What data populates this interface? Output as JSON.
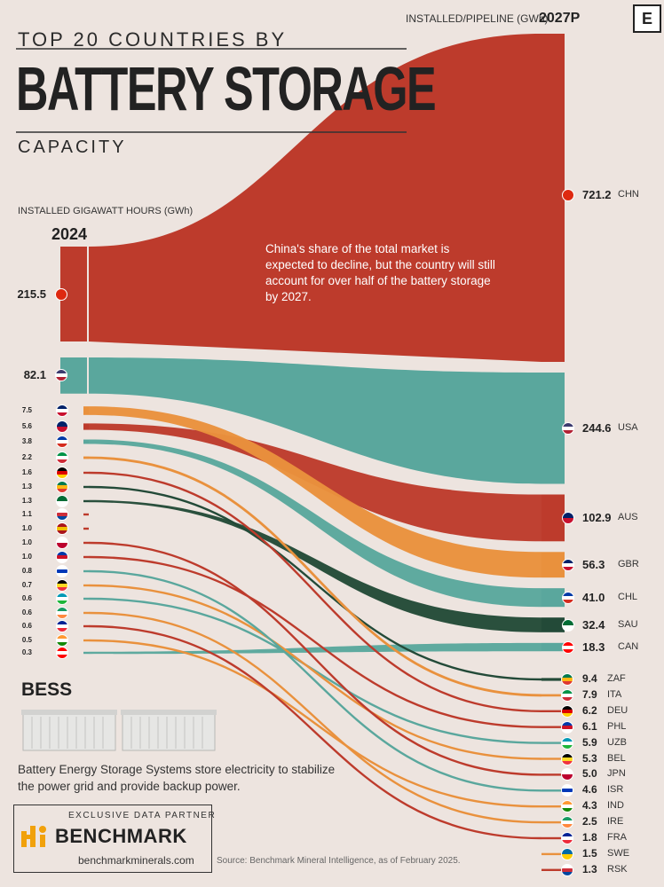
{
  "header": {
    "title_top": "TOP 20 COUNTRIES BY",
    "title_main": "BATTERY STORAGE",
    "title_bottom": "CAPACITY",
    "logo": "E",
    "right_axis_label": "INSTALLED/PIPELINE (GWh)",
    "right_year": "2027P",
    "left_axis_label": "INSTALLED GIGAWATT HOURS (GWh)",
    "left_year": "2024"
  },
  "annotation": "China's share of the total market is expected to decline, but the country will still account for over half of the battery storage by 2027.",
  "bess": {
    "title": "BESS",
    "description": "Battery Energy Storage Systems store electricity to stabilize the power grid and provide backup power."
  },
  "partner": {
    "label": "EXCLUSIVE DATA PARTNER",
    "name": "BENCHMARK",
    "url": "benchmarkminerals.com"
  },
  "source": "Source: Benchmark Mineral Intelligence, as of February 2025.",
  "colors": {
    "red": "#bd3b2c",
    "teal": "#5aa79d",
    "orange": "#e9913d",
    "darkgreen": "#234a38",
    "background": "#ede4df"
  },
  "chart_data": {
    "type": "sankey",
    "series": [
      {
        "name": "2024"
      },
      {
        "name": "2027P"
      }
    ],
    "left_order": [
      "CHN",
      "USA",
      "GBR",
      "AUS",
      "CHL",
      "ITA",
      "DEU",
      "ZAF",
      "SAU",
      "KOR",
      "ESP",
      "JPN",
      "PHL",
      "ISR",
      "BEL",
      "UZB",
      "IRE",
      "FRA",
      "IND",
      "CAN"
    ],
    "left_labels": [
      "215.5",
      "82.1",
      "7.5",
      "5.6",
      "3.8",
      "2.2",
      "1.6",
      "1.3",
      "1.3",
      "1.1",
      "1.0",
      "1.0",
      "1.0",
      "0.8",
      "0.7",
      "0.6",
      "0.6",
      "0.6",
      "0.5",
      "0.3"
    ],
    "left_values": [
      215.5,
      82.1,
      7.5,
      5.6,
      3.8,
      2.2,
      1.6,
      1.3,
      1.3,
      1.1,
      1.0,
      1.0,
      1.0,
      0.8,
      0.7,
      0.6,
      0.6,
      0.6,
      0.5,
      0.3
    ],
    "right_order": [
      "CHN",
      "USA",
      "AUS",
      "GBR",
      "CHL",
      "SAU",
      "CAN",
      "ZAF",
      "ITA",
      "DEU",
      "PHL",
      "UZB",
      "BEL",
      "JPN",
      "ISR",
      "IND",
      "IRE",
      "FRA",
      "SWE",
      "RSK"
    ],
    "right_labels": [
      "721.2",
      "244.6",
      "102.9",
      "56.3",
      "41.0",
      "32.4",
      "18.3",
      "9.4",
      "7.9",
      "6.2",
      "6.1",
      "5.9",
      "5.3",
      "5.0",
      "4.6",
      "4.3",
      "2.5",
      "1.8",
      "1.5",
      "1.3"
    ],
    "right_values": [
      721.2,
      244.6,
      102.9,
      56.3,
      41.0,
      32.4,
      18.3,
      9.4,
      7.9,
      6.2,
      6.1,
      5.9,
      5.3,
      5.0,
      4.6,
      4.3,
      2.5,
      1.8,
      1.5,
      1.3
    ],
    "flow_colors": {
      "CHN": "#bd3b2c",
      "USA": "#5aa79d",
      "GBR": "#e9913d",
      "AUS": "#bd3b2c",
      "CHL": "#5aa79d",
      "SAU": "#234a38",
      "CAN": "#5aa79d",
      "ZAF": "#234a38",
      "ITA": "#e9913d",
      "DEU": "#bd3b2c",
      "PHL": "#bd3b2c",
      "UZB": "#5aa79d",
      "BEL": "#e9913d",
      "JPN": "#bd3b2c",
      "ISR": "#5aa79d",
      "IND": "#e9913d",
      "IRE": "#e9913d",
      "FRA": "#bd3b2c",
      "SWE": "#e9913d",
      "RSK": "#bd3b2c"
    },
    "flags": {
      "CHN": [
        "#de2910"
      ],
      "USA": [
        "#3c3b6e",
        "#ffffff",
        "#b22234"
      ],
      "GBR": [
        "#012169",
        "#ffffff",
        "#c8102e"
      ],
      "AUS": [
        "#012169",
        "#c8102e"
      ],
      "CHL": [
        "#0039a6",
        "#ffffff",
        "#d52b1e"
      ],
      "ITA": [
        "#009246",
        "#ffffff",
        "#ce2b37"
      ],
      "DEU": [
        "#000000",
        "#dd0000",
        "#ffce00"
      ],
      "ZAF": [
        "#007a4d",
        "#ffb612",
        "#de3831"
      ],
      "SAU": [
        "#006c35",
        "#ffffff"
      ],
      "KOR": [
        "#ffffff",
        "#cd2e3a",
        "#0047a0"
      ],
      "ESP": [
        "#aa151b",
        "#f1bf00",
        "#aa151b"
      ],
      "JPN": [
        "#ffffff",
        "#bc002d"
      ],
      "PHL": [
        "#0038a8",
        "#ce1126",
        "#ffffff"
      ],
      "ISR": [
        "#ffffff",
        "#0038b8",
        "#ffffff"
      ],
      "BEL": [
        "#000000",
        "#fdda24",
        "#ef3340"
      ],
      "UZB": [
        "#0099b5",
        "#ffffff",
        "#1eb53a"
      ],
      "IRE": [
        "#169b62",
        "#ffffff",
        "#ff883e"
      ],
      "FRA": [
        "#002395",
        "#ffffff",
        "#ed2939"
      ],
      "IND": [
        "#ff9933",
        "#ffffff",
        "#138808"
      ],
      "CAN": [
        "#ff0000",
        "#ffffff",
        "#ff0000"
      ],
      "SWE": [
        "#006aa7",
        "#fecc00"
      ],
      "RSK": [
        "#ffffff",
        "#cd2e3a",
        "#0047a0"
      ]
    }
  }
}
